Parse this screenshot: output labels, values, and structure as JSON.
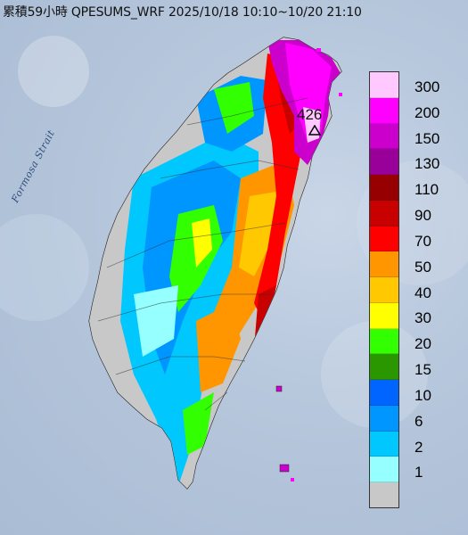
{
  "title": "累積59小時 QPESUMS_WRF 2025/10/18 10:10~10/20 21:10",
  "sea_label": "Formosa Strait",
  "peak": {
    "value": "426",
    "marker": "triangle-icon"
  },
  "legend": [
    {
      "label": "300",
      "color": "#ffc8ff"
    },
    {
      "label": "200",
      "color": "#ff00ff"
    },
    {
      "label": "150",
      "color": "#cc00cc"
    },
    {
      "label": "130",
      "color": "#990099"
    },
    {
      "label": "110",
      "color": "#960000"
    },
    {
      "label": "90",
      "color": "#c80000"
    },
    {
      "label": "70",
      "color": "#ff0000"
    },
    {
      "label": "50",
      "color": "#ff9600"
    },
    {
      "label": "40",
      "color": "#ffc800"
    },
    {
      "label": "30",
      "color": "#ffff00"
    },
    {
      "label": "20",
      "color": "#32ff00"
    },
    {
      "label": "15",
      "color": "#2a9600"
    },
    {
      "label": "10",
      "color": "#0064ff"
    },
    {
      "label": "6",
      "color": "#0096ff"
    },
    {
      "label": "2",
      "color": "#00c8ff"
    },
    {
      "label": "1",
      "color": "#96ffff"
    },
    {
      "label": "",
      "color": "#c8c8c8"
    }
  ]
}
